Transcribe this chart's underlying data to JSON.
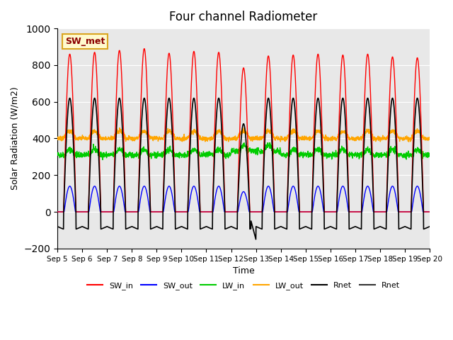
{
  "title": "Four channel Radiometer",
  "xlabel": "Time",
  "ylabel": "Solar Radiation (W/m2)",
  "ylim": [
    -200,
    1000
  ],
  "annotation_text": "SW_met",
  "annotation_color": "#8B0000",
  "annotation_bg": "#FFFACD",
  "annotation_border": "#DAA520",
  "x_tick_labels": [
    "Sep 5",
    "Sep 6",
    "Sep 7",
    "Sep 8",
    "Sep 9",
    "Sep 10",
    "Sep 11",
    "Sep 12",
    "Sep 13",
    "Sep 14",
    "Sep 15",
    "Sep 16",
    "Sep 17",
    "Sep 18",
    "Sep 19",
    "Sep 20"
  ],
  "colors": {
    "SW_in": "#FF0000",
    "SW_out": "#0000FF",
    "LW_in": "#00CC00",
    "LW_out": "#FFA500",
    "Rnet_black": "#000000",
    "Rnet_dark": "#333333"
  },
  "grid_color": "#FFFFFF",
  "bg_color": "#E8E8E8",
  "n_days": 15,
  "day_points": 144
}
